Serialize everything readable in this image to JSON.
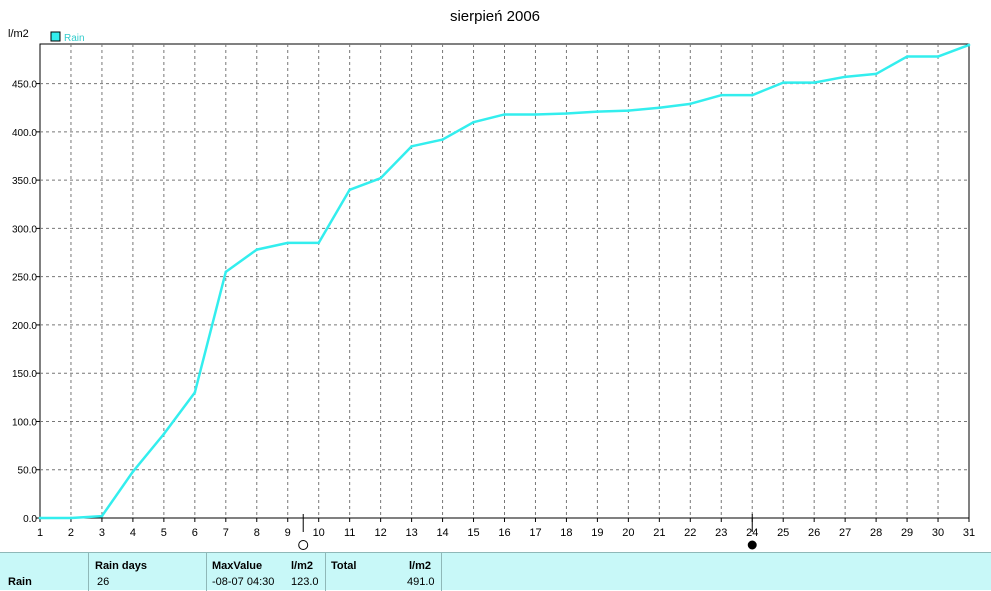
{
  "chart_data": {
    "type": "line",
    "title": "sierpień 2006",
    "ylabel": "l/m2",
    "xlabel": "",
    "x": [
      1,
      2,
      3,
      4,
      5,
      6,
      7,
      8,
      9,
      10,
      11,
      12,
      13,
      14,
      15,
      16,
      17,
      18,
      19,
      20,
      21,
      22,
      23,
      24,
      25,
      26,
      27,
      28,
      29,
      30,
      31
    ],
    "series": [
      {
        "name": "Rain",
        "color": "#33eeee",
        "values": [
          0,
          0,
          2,
          48,
          87,
          130,
          255,
          278,
          285,
          285,
          340,
          352,
          385,
          392,
          410,
          418,
          418,
          419,
          421,
          422,
          425,
          429,
          438,
          438,
          451,
          451,
          457,
          460,
          478,
          478,
          490
        ]
      }
    ],
    "ylim": [
      0,
      491
    ],
    "yticks": [
      "0.0",
      "50.0",
      "100.0",
      "150.0",
      "200.0",
      "250.0",
      "300.0",
      "350.0",
      "400.0",
      "450.0"
    ],
    "xlim": [
      1,
      31
    ],
    "grid": true,
    "legend": "top-left",
    "moon_markers": [
      {
        "x": 9.5,
        "phase": "full-moon"
      },
      {
        "x": 24,
        "phase": "new-moon"
      }
    ]
  },
  "stats": {
    "row_label": "Rain",
    "rain_days_header": "Rain days",
    "rain_days_value": "26",
    "maxvalue_header": "MaxValue",
    "maxvalue_unit": "l/m2",
    "maxvalue_date": "-08-07  04:30",
    "maxvalue_value": "123.0",
    "total_header": "Total",
    "total_unit": "l/m2",
    "total_value": "491.0"
  }
}
